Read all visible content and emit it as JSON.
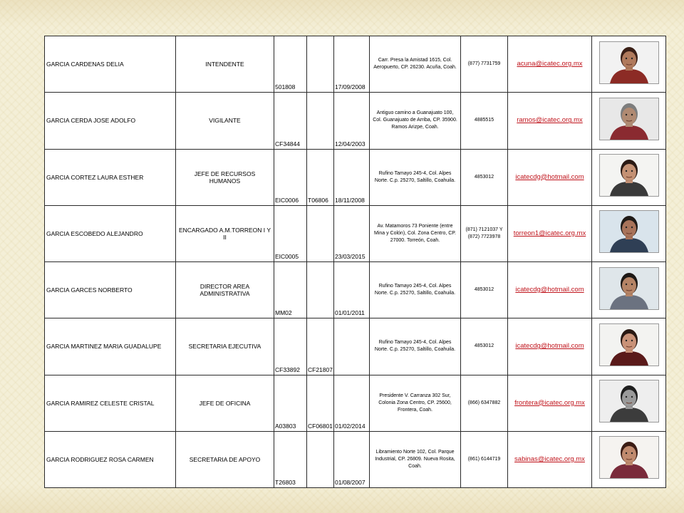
{
  "employees": [
    {
      "name": "GARCIA CARDENAS DELIA",
      "title": "INTENDENTE",
      "code1": "501808",
      "code2": "",
      "date": "17/09/2008",
      "address": "Carr. Presa la Amistad 1615, Col. Aeropuerto, CP. 26230. Acuña, Coah.",
      "phone": "(877) 7731759",
      "email": "acuna@icatec.org.mx",
      "photo": {
        "bg": "#f2f2f2",
        "skin": "#b07a5c",
        "hair": "#3a1f16",
        "shirt": "#8c2b25"
      }
    },
    {
      "name": "GARCIA CERDA JOSE ADOLFO",
      "title": "VIGILANTE",
      "code1": "CF34844",
      "code2": "",
      "date": "12/04/2003",
      "address": "Antiguo camino a Guanajuato 100, Col. Guanajuato de Arriba, CP. 35900. Ramos Arizpe, Coah.",
      "phone": "4885515",
      "email": "ramos@icatec.org.mx",
      "photo": {
        "bg": "#e8e8e8",
        "skin": "#b08a72",
        "hair": "#7d7d7d",
        "shirt": "#8a2a30"
      }
    },
    {
      "name": "GARCIA CORTEZ LAURA ESTHER",
      "title": "JEFE DE RECURSOS HUMANOS",
      "code1": "EIC0006",
      "code2": "T06806",
      "date": "18/11/2008",
      "address": "Rufino Tamayo 245-4, Col. Alpes Norte. C.p. 25270, Saltillo, Coahuila.",
      "phone": "4853012",
      "email": "icatecdg@hotmail.com",
      "photo": {
        "bg": "#f4f4f2",
        "skin": "#c49174",
        "hair": "#2b1a14",
        "shirt": "#3a3a3a"
      }
    },
    {
      "name": "GARCIA ESCOBEDO ALEJANDRO",
      "title": "ENCARGADO A.M.TORREON I Y II",
      "code1": "EIC0005",
      "code2": "",
      "date": "23/03/2015",
      "address": "Av. Matamoros 73 Poniente (entre Mina y Colón), Col. Zona Centro, CP. 27000. Torreón, Coah.",
      "phone": "(871) 7121037 Y (872) 7723978",
      "email": "torreon1@icatec.org.mx",
      "photo": {
        "bg": "#d9e4ec",
        "skin": "#a8735a",
        "hair": "#1f1a17",
        "shirt": "#2f3f55"
      }
    },
    {
      "name": "GARCIA GARCES NORBERTO",
      "title": "DIRECTOR AREA ADMINISTRATIVA",
      "code1": "MM02",
      "code2": "",
      "date": "01/01/2011",
      "address": "Rufino Tamayo 245-4, Col. Alpes Norte. C.p. 25270, Saltillo, Coahuila.",
      "phone": "4853012",
      "email": "icatecdg@hotmail.com",
      "photo": {
        "bg": "#dfe6ea",
        "skin": "#b58466",
        "hair": "#1d1815",
        "shirt": "#6b7280"
      }
    },
    {
      "name": "GARCIA MARTINEZ MARIA GUADALUPE",
      "title": "SECRETARIA EJECUTIVA",
      "code1": "CF33892",
      "code2": "CF21807",
      "date": "",
      "address": "Rufino Tamayo 245-4, Col. Alpes Norte. C.p. 25270, Saltillo, Coahuila.",
      "phone": "4853012",
      "email": "icatecdg@hotmail.com",
      "photo": {
        "bg": "#f3f3f1",
        "skin": "#c99278",
        "hair": "#2a1913",
        "shirt": "#5a1a1a"
      }
    },
    {
      "name": "GARCIA RAMIREZ CELESTE CRISTAL",
      "title": "JEFE DE OFICINA",
      "code1": "A03803",
      "code2": "CF06801",
      "date": "01/02/2014",
      "address": "Presidente V. Carranza 302 Sur, Colonia Zona Centro, CP. 25600, Frontera, Coah.",
      "phone": "(866) 6347882",
      "email": "frontera@icatec.org.mx",
      "photo": {
        "bg": "#eeeeee",
        "skin": "#9a9a9a",
        "hair": "#1e1e1e",
        "shirt": "#3c3c3c"
      }
    },
    {
      "name": "GARCIA RODRIGUEZ ROSA CARMEN",
      "title": "SECRETARIA DE APOYO",
      "code1": "T26803",
      "code2": "",
      "date": "01/08/2007",
      "address": "Libramiento Norte 102, Col. Parque Industrial, CP. 26809. Nueva Rosita, Coah.",
      "phone": "(861) 6144719",
      "email": "sabinas@icatec.org.mx",
      "photo": {
        "bg": "#f5f3f0",
        "skin": "#c08a6e",
        "hair": "#3b1c14",
        "shirt": "#7a2b3b"
      }
    }
  ]
}
